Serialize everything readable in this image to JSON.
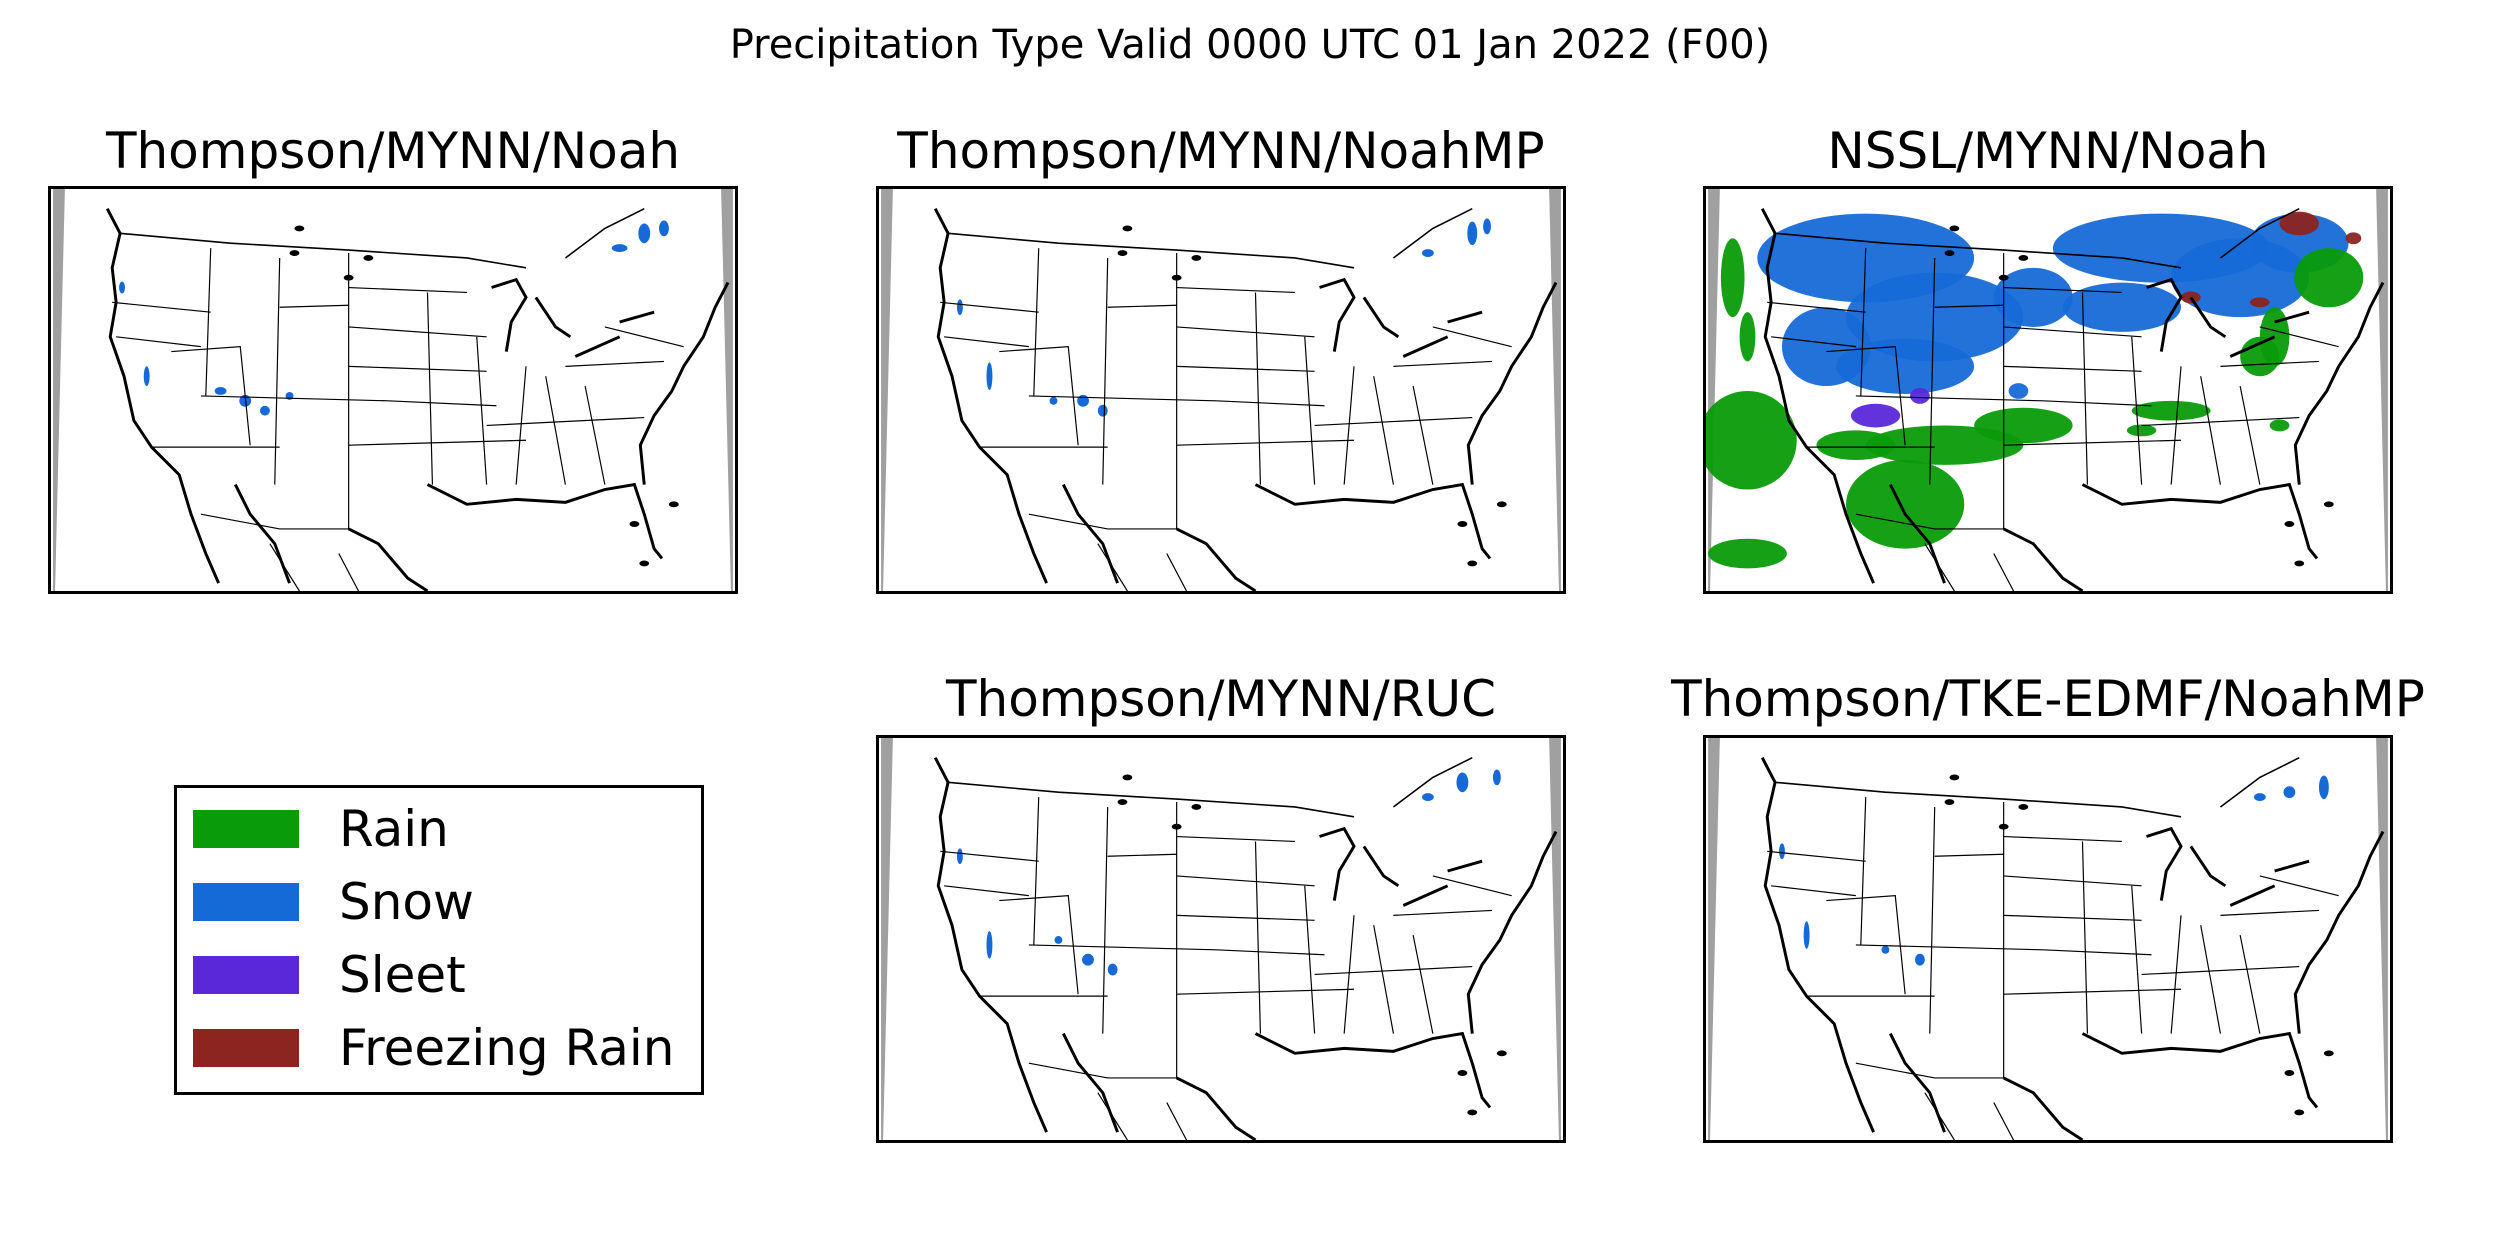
{
  "title": "Precipitation Type Valid 0000 UTC 01 Jan 2022 (F00)",
  "panels": [
    {
      "title": "Thompson/MYNN/Noah"
    },
    {
      "title": "Thompson/MYNN/NoahMP"
    },
    {
      "title": "NSSL/MYNN/Noah"
    },
    {
      "title": "Thompson/MYNN/RUC"
    },
    {
      "title": "Thompson/TKE-EDMF/NoahMP"
    }
  ],
  "legend": {
    "items": [
      {
        "label": "Rain",
        "color": "#0a9b0a"
      },
      {
        "label": "Snow",
        "color": "#166ad8"
      },
      {
        "label": "Sleet",
        "color": "#5a28d8"
      },
      {
        "label": "Freezing Rain",
        "color": "#8c2420"
      }
    ]
  },
  "colors": {
    "frame": "#000000",
    "border_gray": "#a0a0a0"
  }
}
